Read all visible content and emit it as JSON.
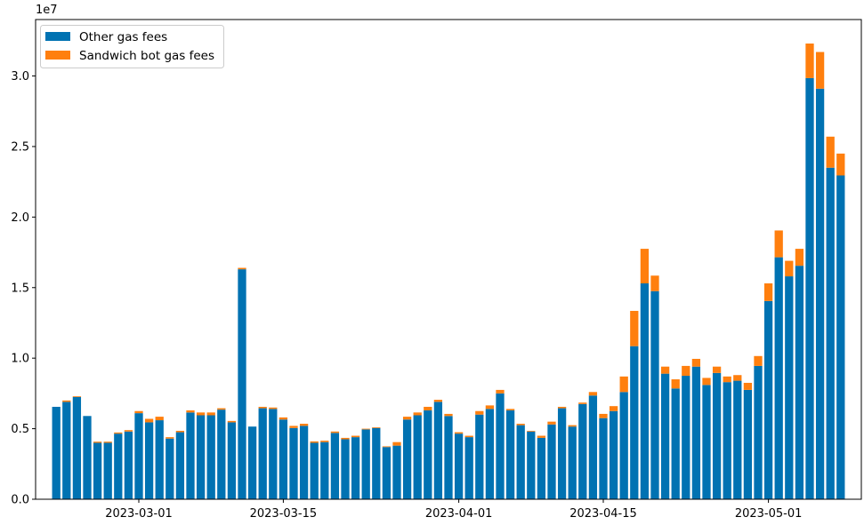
{
  "chart_data": {
    "type": "bar",
    "stacked": true,
    "offset_label": "1e7",
    "legend_position": "upper-left",
    "grid": false,
    "colors": {
      "other": "#0072b2",
      "sandwich": "#ff7f0e"
    },
    "ylim": [
      0,
      34000000
    ],
    "yticks": [
      0,
      5000000,
      10000000,
      15000000,
      20000000,
      25000000,
      30000000
    ],
    "ytick_labels": [
      "0.0",
      "0.5",
      "1.0",
      "1.5",
      "2.0",
      "2.5",
      "3.0"
    ],
    "xticks": [
      "2023-03-01",
      "2023-03-15",
      "2023-04-01",
      "2023-04-15",
      "2023-05-01"
    ],
    "xlim": [
      "2023-02-19",
      "2023-05-10"
    ],
    "dates": [
      "2023-02-21",
      "2023-02-22",
      "2023-02-23",
      "2023-02-24",
      "2023-02-25",
      "2023-02-26",
      "2023-02-27",
      "2023-02-28",
      "2023-03-01",
      "2023-03-02",
      "2023-03-03",
      "2023-03-04",
      "2023-03-05",
      "2023-03-06",
      "2023-03-07",
      "2023-03-08",
      "2023-03-09",
      "2023-03-10",
      "2023-03-11",
      "2023-03-12",
      "2023-03-13",
      "2023-03-14",
      "2023-03-15",
      "2023-03-16",
      "2023-03-17",
      "2023-03-18",
      "2023-03-19",
      "2023-03-20",
      "2023-03-21",
      "2023-03-22",
      "2023-03-23",
      "2023-03-24",
      "2023-03-25",
      "2023-03-26",
      "2023-03-27",
      "2023-03-28",
      "2023-03-29",
      "2023-03-30",
      "2023-03-31",
      "2023-04-01",
      "2023-04-02",
      "2023-04-03",
      "2023-04-04",
      "2023-04-05",
      "2023-04-06",
      "2023-04-07",
      "2023-04-08",
      "2023-04-09",
      "2023-04-10",
      "2023-04-11",
      "2023-04-12",
      "2023-04-13",
      "2023-04-14",
      "2023-04-15",
      "2023-04-16",
      "2023-04-17",
      "2023-04-18",
      "2023-04-19",
      "2023-04-20",
      "2023-04-21",
      "2023-04-22",
      "2023-04-23",
      "2023-04-24",
      "2023-04-25",
      "2023-04-26",
      "2023-04-27",
      "2023-04-28",
      "2023-04-29",
      "2023-04-30",
      "2023-05-01",
      "2023-05-02",
      "2023-05-03",
      "2023-05-04",
      "2023-05-05",
      "2023-05-06",
      "2023-05-07",
      "2023-05-08"
    ],
    "series": [
      {
        "name": "Other gas fees",
        "values": [
          6550000,
          6900000,
          7250000,
          5900000,
          4000000,
          4000000,
          4650000,
          4800000,
          6100000,
          5450000,
          5600000,
          4300000,
          4750000,
          6150000,
          5950000,
          5950000,
          6350000,
          5450000,
          16300000,
          5150000,
          6450000,
          6400000,
          5650000,
          5050000,
          5200000,
          4000000,
          4050000,
          4700000,
          4250000,
          4400000,
          4950000,
          5050000,
          3700000,
          3800000,
          5650000,
          5950000,
          6300000,
          6900000,
          5900000,
          4650000,
          4400000,
          6000000,
          6400000,
          7500000,
          6300000,
          5250000,
          4800000,
          4350000,
          5300000,
          6450000,
          5150000,
          6750000,
          7350000,
          5750000,
          6250000,
          7600000,
          10850000,
          15300000,
          14750000,
          8900000,
          7850000,
          8750000,
          9400000,
          8100000,
          8950000,
          8300000,
          8400000,
          7750000,
          9450000,
          14050000,
          17150000,
          15800000,
          16550000,
          29850000,
          29100000,
          23500000,
          22950000
        ]
      },
      {
        "name": "Sandwich bot gas fees",
        "values": [
          0,
          100000,
          50000,
          0,
          80000,
          80000,
          80000,
          100000,
          150000,
          250000,
          250000,
          100000,
          100000,
          150000,
          200000,
          200000,
          100000,
          100000,
          100000,
          0,
          100000,
          100000,
          150000,
          150000,
          150000,
          100000,
          100000,
          100000,
          100000,
          100000,
          50000,
          50000,
          50000,
          250000,
          200000,
          200000,
          250000,
          150000,
          150000,
          100000,
          100000,
          250000,
          250000,
          250000,
          100000,
          100000,
          50000,
          150000,
          200000,
          100000,
          100000,
          100000,
          250000,
          300000,
          350000,
          1100000,
          2500000,
          2450000,
          1100000,
          500000,
          650000,
          700000,
          550000,
          500000,
          450000,
          400000,
          400000,
          500000,
          700000,
          1250000,
          1900000,
          1100000,
          1200000,
          2450000,
          2600000,
          2200000,
          1550000
        ]
      }
    ]
  }
}
